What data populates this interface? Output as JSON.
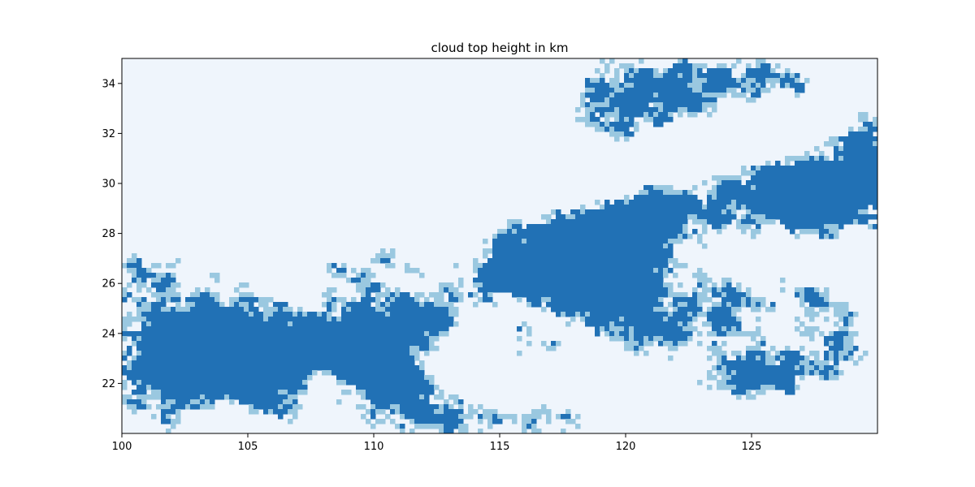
{
  "chart_data": {
    "type": "heatmap",
    "title": "cloud top height in km",
    "xlabel": "",
    "ylabel": "",
    "xlim": [
      100,
      130
    ],
    "ylim": [
      20,
      35
    ],
    "x_ticks": [
      100,
      105,
      110,
      115,
      120,
      125
    ],
    "y_ticks": [
      22,
      24,
      26,
      28,
      30,
      32,
      34
    ],
    "x_tick_labels": [
      "100",
      "105",
      "110",
      "115",
      "120",
      "125"
    ],
    "y_tick_labels": [
      "22",
      "24",
      "26",
      "28",
      "30",
      "32",
      "34"
    ],
    "colormap": "Blues",
    "colors": {
      "clear": "#eff5fc",
      "low": "#9ac8e0",
      "high": "#2171b5"
    },
    "legend": "none",
    "grid": false
  }
}
